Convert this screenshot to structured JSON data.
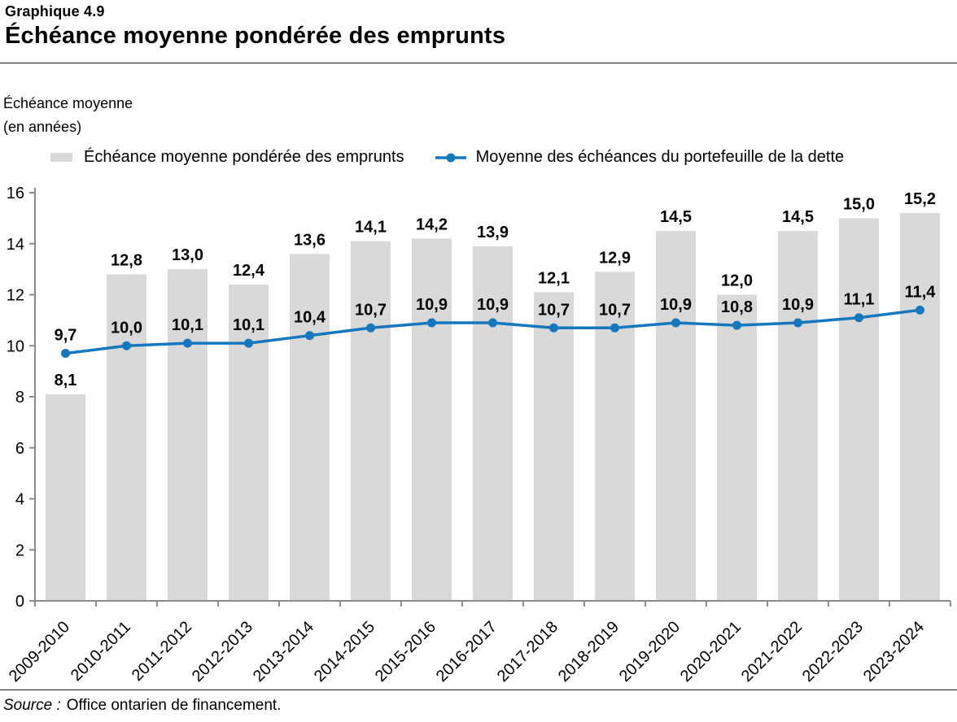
{
  "header": {
    "chart_number": "Graphique 4.9",
    "title": "Échéance moyenne pondérée des emprunts"
  },
  "y_axis_caption": {
    "line1": "Échéance moyenne",
    "line2": "(en années)"
  },
  "colors": {
    "bar": "#D9D9D9",
    "line": "#1577BD",
    "axis": "#8C8C8C",
    "label_text": "#000000",
    "rule": "#1A1A1A"
  },
  "chart_data": {
    "type": "bar+line",
    "title": "Échéance moyenne pondérée des emprunts",
    "ylabel": "Échéance moyenne (en années)",
    "xlabel": "",
    "ylim": [
      0,
      16
    ],
    "y_ticks": [
      0,
      2,
      4,
      6,
      8,
      10,
      12,
      14,
      16
    ],
    "grid": false,
    "legend_position": "top",
    "categories": [
      "2009-2010",
      "2010-2011",
      "2011-2012",
      "2012-2013",
      "2013-2014",
      "2014-2015",
      "2015-2016",
      "2016-2017",
      "2017-2018",
      "2018-2019",
      "2019-2020",
      "2020-2021",
      "2021-2022",
      "2022-2023",
      "2023-2024"
    ],
    "series": [
      {
        "name": "Échéance moyenne pondérée des emprunts",
        "type": "bar",
        "values": [
          8.1,
          12.8,
          13.0,
          12.4,
          13.6,
          14.1,
          14.2,
          13.9,
          12.1,
          12.9,
          14.5,
          12.0,
          14.5,
          15.0,
          15.2
        ],
        "labels": [
          "8,1",
          "12,8",
          "13,0",
          "12,4",
          "13,6",
          "14,1",
          "14,2",
          "13,9",
          "12,1",
          "12,9",
          "14,5",
          "12,0",
          "14,5",
          "15,0",
          "15,2"
        ]
      },
      {
        "name": "Moyenne des échéances du portefeuille de la dette",
        "type": "line",
        "values": [
          9.7,
          10.0,
          10.1,
          10.1,
          10.4,
          10.7,
          10.9,
          10.9,
          10.7,
          10.7,
          10.9,
          10.8,
          10.9,
          11.1,
          11.4
        ],
        "labels": [
          "9,7",
          "10,0",
          "10,1",
          "10,1",
          "10,4",
          "10,7",
          "10,9",
          "10,9",
          "10,7",
          "10,7",
          "10,9",
          "10,8",
          "10,9",
          "11,1",
          "11,4"
        ]
      }
    ]
  },
  "source": {
    "prefix": "Source :",
    "text": "Office ontarien de financement."
  }
}
